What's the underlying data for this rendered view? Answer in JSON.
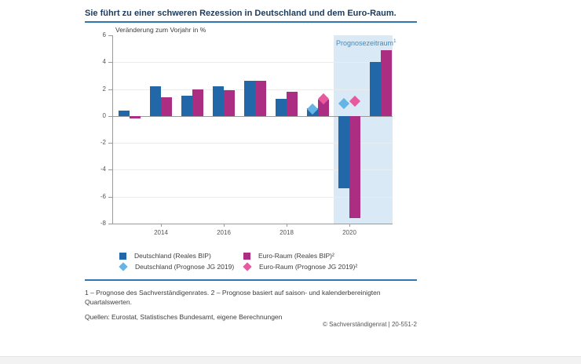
{
  "title": "Sie führt zu einer schweren Rezession in Deutschland und dem Euro-Raum.",
  "chart_data": {
    "type": "bar",
    "ylabel": "Veränderung zum Vorjahr in %",
    "ylim": [
      -8,
      6
    ],
    "yticks": [
      6,
      4,
      2,
      0,
      -2,
      -4,
      -6,
      -8
    ],
    "gridlines": [
      4,
      2,
      -2,
      -4,
      -6
    ],
    "categories": [
      2013,
      2014,
      2015,
      2016,
      2017,
      2018,
      2019,
      2020,
      2021
    ],
    "xticks": [
      2014,
      2016,
      2018,
      2020
    ],
    "series": [
      {
        "name": "Deutschland (Reales BIP)",
        "color": "#2267a7",
        "values": [
          0.4,
          2.2,
          1.5,
          2.2,
          2.6,
          1.3,
          0.6,
          -5.4,
          4.0
        ]
      },
      {
        "name": "Euro-Raum (Reales BIP)²",
        "color": "#ab2e82",
        "values": [
          -0.2,
          1.4,
          2.0,
          1.9,
          2.6,
          1.8,
          1.2,
          -7.6,
          4.9
        ]
      }
    ],
    "markers": [
      {
        "name": "Deutschland (Prognose JG 2019)",
        "color": "#64b4e6",
        "points": [
          {
            "x": 2019,
            "y": 0.5
          },
          {
            "x": 2020,
            "y": 0.9
          }
        ]
      },
      {
        "name": "Euro-Raum (Prognose JG 2019)²",
        "color": "#e85a9f",
        "points": [
          {
            "x": 2019,
            "y": 1.3
          },
          {
            "x": 2020,
            "y": 1.1
          }
        ]
      }
    ],
    "forecast_band": {
      "label": "Prognosezeitraum",
      "label_sup": "1",
      "from": 2019.5,
      "to": 2021.5
    }
  },
  "footnotes": {
    "notes": "1 – Prognose des Sachverständigenrates.  2 – Prognose basiert auf saison- und kalenderbereinigten Quartalswerten.",
    "sources": "Quellen: Eurostat, Statistisches Bundesamt, eigene Berechnungen"
  },
  "copyright": "© Sachverständigenrat | 20-551-2"
}
